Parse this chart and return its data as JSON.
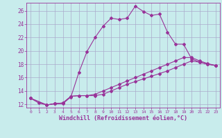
{
  "xlabel": "Windchill (Refroidissement éolien,°C)",
  "bg_color": "#c8ecec",
  "grid_color": "#aaaacc",
  "line_color": "#993399",
  "xlim": [
    -0.5,
    23.5
  ],
  "ylim": [
    11.5,
    27.2
  ],
  "xticks": [
    0,
    1,
    2,
    3,
    4,
    5,
    6,
    7,
    8,
    9,
    10,
    11,
    12,
    13,
    14,
    15,
    16,
    17,
    18,
    19,
    20,
    21,
    22,
    23
  ],
  "yticks": [
    12,
    14,
    16,
    18,
    20,
    22,
    24,
    26
  ],
  "line1_x": [
    0,
    1,
    2,
    3,
    4,
    5,
    6,
    7,
    8,
    9,
    10,
    11,
    12,
    13,
    14,
    15,
    16,
    17,
    18,
    19,
    20,
    21,
    22,
    23
  ],
  "line1_y": [
    12.9,
    12.2,
    11.9,
    12.1,
    12.1,
    13.1,
    16.8,
    19.9,
    22.0,
    23.7,
    24.9,
    24.7,
    24.9,
    26.7,
    25.9,
    25.3,
    25.5,
    22.8,
    21.0,
    21.0,
    18.8,
    18.3,
    18.0,
    17.8
  ],
  "line2_x": [
    0,
    2,
    3,
    4,
    5,
    6,
    7,
    8,
    9,
    10,
    11,
    12,
    13,
    14,
    15,
    16,
    17,
    18,
    19,
    20,
    21,
    22,
    23
  ],
  "line2_y": [
    12.9,
    11.9,
    12.1,
    12.2,
    13.2,
    13.3,
    13.3,
    13.5,
    14.0,
    14.5,
    15.0,
    15.5,
    16.0,
    16.5,
    17.0,
    17.5,
    18.0,
    18.5,
    19.0,
    19.0,
    18.5,
    18.1,
    17.8
  ],
  "line3_x": [
    0,
    2,
    3,
    4,
    5,
    6,
    7,
    8,
    9,
    10,
    11,
    12,
    13,
    14,
    15,
    16,
    17,
    18,
    19,
    20,
    21,
    22,
    23
  ],
  "line3_y": [
    12.9,
    11.9,
    12.1,
    12.2,
    13.2,
    13.3,
    13.3,
    13.3,
    13.5,
    14.0,
    14.5,
    15.0,
    15.4,
    15.8,
    16.2,
    16.6,
    17.0,
    17.5,
    18.0,
    18.5,
    18.3,
    18.0,
    17.8
  ],
  "marker": "D",
  "markersize": 2.0,
  "linewidth": 0.8,
  "xlabel_fontsize": 6.0,
  "xtick_fontsize": 4.5,
  "ytick_fontsize": 5.5
}
